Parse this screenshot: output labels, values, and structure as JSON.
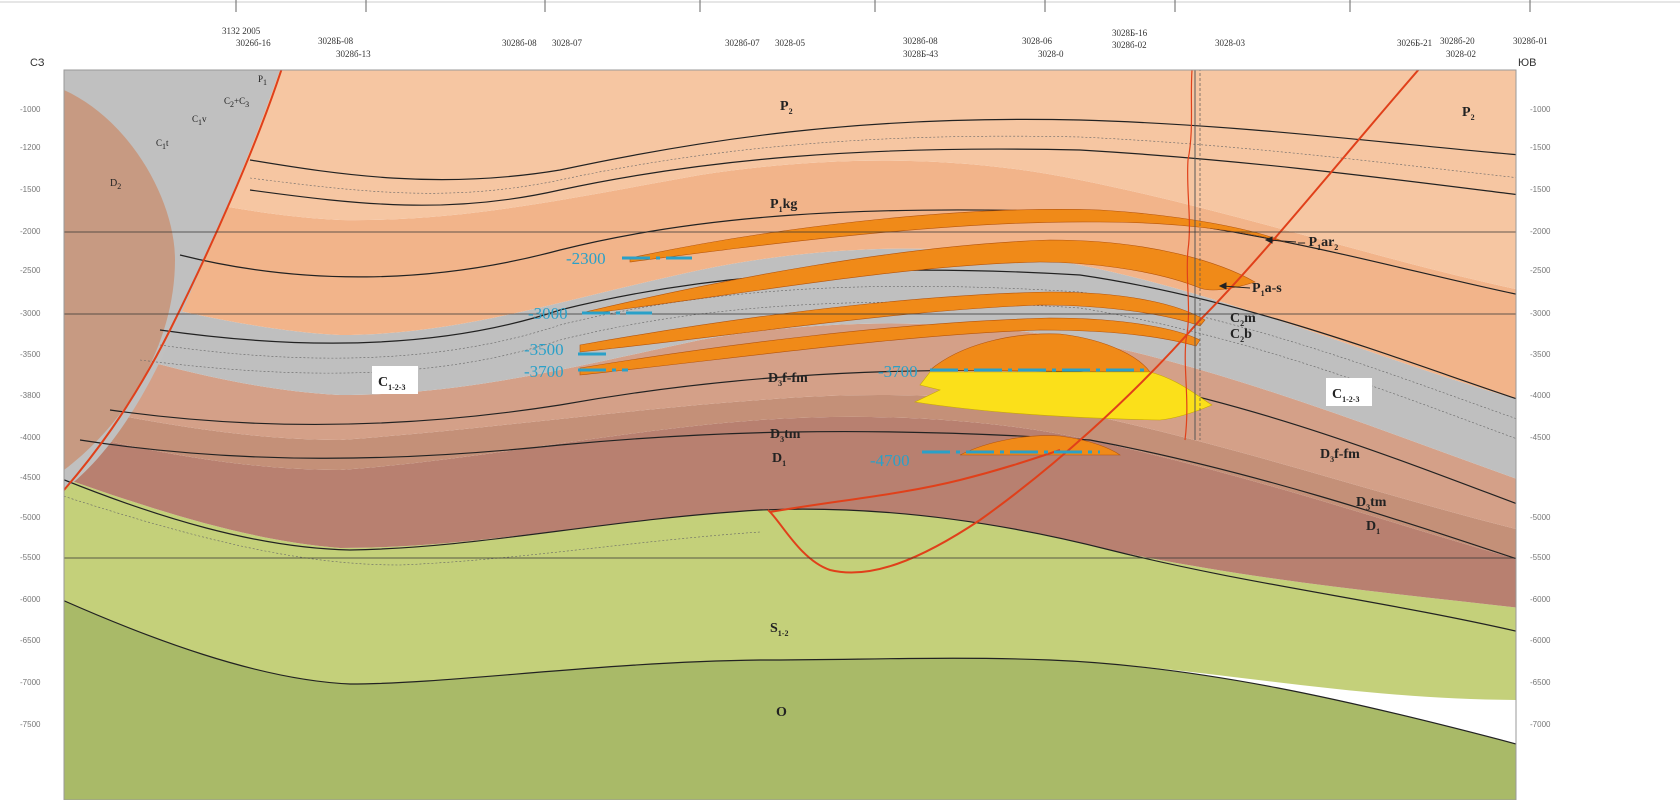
{
  "section": {
    "end_labels": {
      "left": "СЗ",
      "right": "ЮВ"
    },
    "wells": [
      {
        "name1": "3132 2005",
        "name2": "3026б-16"
      },
      {
        "name1": "3028Б-08",
        "name2": "3028б-13"
      },
      {
        "name1": "3028б-08",
        "name2": "3028-07"
      },
      {
        "name1": "3028б-07",
        "name2": "3028-05"
      },
      {
        "name1": "3028б-08",
        "name2": "3028Б-43"
      },
      {
        "name1": "3028-06",
        "name2": "3028-0"
      },
      {
        "name1": "3028Б-16",
        "name2": "3028б-02"
      },
      {
        "name1": "3028-03",
        "name2": ""
      },
      {
        "name1": "3026Б-21",
        "name2": ""
      },
      {
        "name1": "3028б-20",
        "name2": "3028-02"
      },
      {
        "name1": "3028б-01",
        "name2": ""
      }
    ],
    "depth_ticks_left": [
      "-1000",
      "-1200",
      "-1500",
      "-2000",
      "-2500",
      "-3000",
      "-3500",
      "-3800",
      "-4000",
      "-4500",
      "-5000",
      "-5500",
      "-6000",
      "-6500",
      "-7000",
      "-7500"
    ],
    "depth_ticks_right": [
      "-1000",
      "-1500",
      "-1500",
      "-2000",
      "-2500",
      "-3000",
      "-3500",
      "-4000",
      "-4500",
      "-5000",
      "-5500",
      "-6000",
      "-6000",
      "-6500",
      "-7000"
    ],
    "units": {
      "P2_left": {
        "main": "P",
        "sub": "2"
      },
      "P2_right": {
        "main": "P",
        "sub": "2"
      },
      "P1kg": {
        "main": "P",
        "sub": "1",
        "tail": "kg"
      },
      "P1ar2": {
        "main": "P",
        "sub": "1",
        "tail": "ar",
        "sub2": "2"
      },
      "P1as": {
        "main": "P",
        "sub": "1",
        "tail": "a-s"
      },
      "C2m": {
        "main": "C",
        "sub": "2",
        "tail": "m"
      },
      "C2b": {
        "main": "C",
        "sub": "2",
        "tail": "b"
      },
      "C123_left": {
        "main": "C",
        "sub": "1-2-3"
      },
      "C123_right": {
        "main": "C",
        "sub": "1-2-3"
      },
      "D3ffm_center": {
        "main": "D",
        "sub": "3",
        "tail": "f-fm"
      },
      "D3ffm_right": {
        "main": "D",
        "sub": "3",
        "tail": "f-fm"
      },
      "D3tm_center": {
        "main": "D",
        "sub": "3",
        "tail": "tm"
      },
      "D3tm_right": {
        "main": "D",
        "sub": "3",
        "tail": "tm"
      },
      "D1_center": {
        "main": "D",
        "sub": "1"
      },
      "D1_right": {
        "main": "D",
        "sub": "1"
      },
      "S12": {
        "main": "S",
        "sub": "1-2"
      },
      "O": {
        "main": "O"
      },
      "D2_left": {
        "main": "D",
        "sub": "2"
      },
      "C1t": {
        "main": "C",
        "sub": "1",
        "tail": "t"
      },
      "C1v": {
        "main": "C",
        "sub": "1",
        "tail": "v"
      },
      "C2C3": {
        "main": "C",
        "sub": "2",
        "tail": "+C",
        "sub2": "3"
      },
      "P1_left": {
        "main": "P",
        "sub": "1"
      }
    },
    "contacts": [
      "-2300",
      "-3000",
      "-3500",
      "-3700",
      "-3700",
      "-4700"
    ],
    "colors": {
      "permian_upper": "#f6c6a2",
      "permian_mid": "#f2b48a",
      "carbonate_grey": "#bfbfbf",
      "devonian": "#d4a088",
      "devonian_dark": "#b88070",
      "silurian": "#c4d07a",
      "ordovician": "#a9ba68",
      "reservoir_oil": "#f08a18",
      "reservoir_gas": "#fbe01a",
      "fault": "#e0401a",
      "contact_line": "#2aa0c8"
    }
  }
}
